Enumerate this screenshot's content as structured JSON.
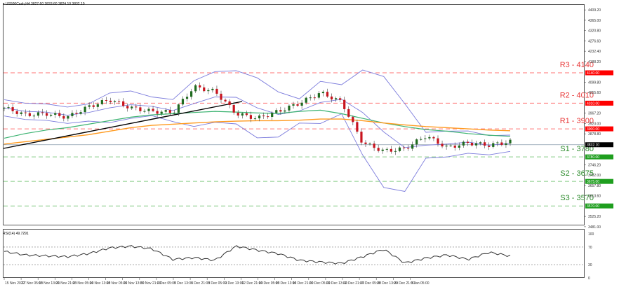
{
  "window": {
    "symbol_header": "US500Cash,H4  3827.60 3833.60 3824.10 3832.10",
    "symbol": "US500Cash",
    "timeframe": "H4",
    "ohlc": {
      "open": "3827.60",
      "high": "3833.60",
      "low": "3824.10",
      "close": "3832.10"
    }
  },
  "rsi_panel": {
    "label": "RSI(14) 49.7291",
    "axis_ticks": [
      "100",
      "70",
      "30",
      "0"
    ],
    "levels": [
      70,
      30
    ]
  },
  "price_axis": {
    "ticks": [
      "4409.20",
      "4365.00",
      "4320.80",
      "4276.60",
      "4232.40",
      "4188.20",
      "4099.80",
      "4055.60",
      "3967.20",
      "3923.00",
      "3878.80",
      "3746.20",
      "3702.00",
      "3657.80",
      "3613.60",
      "3525.20",
      "3481.00"
    ],
    "current_price_label": "3832.10",
    "current_price_color": "#000000"
  },
  "time_axis": {
    "ticks": [
      "15 Nov 2022",
      "17 Nov 05:00",
      "18 Nov 13:00",
      "21 Nov 21:00",
      "23 Nov 05:00",
      "24 Nov 13:00",
      "28 Nov 05:00",
      "29 Nov 13:00",
      "30 Nov 21:00",
      "2 Dec 05:00",
      "5 Dec 13:00",
      "6 Dec 21:00",
      "8 Dec 05:00",
      "9 Dec 13:00",
      "12 Dec 21:00",
      "14 Dec 05:00",
      "15 Dec 13:00",
      "16 Dec 21:00",
      "20 Dec 05:00",
      "21 Dec 13:00",
      "22 Dec 21:00",
      "27 Dec 05:00",
      "28 Dec 13:00",
      "29 Dec 21:00",
      "3 Jan 05:00"
    ]
  },
  "levels": [
    {
      "name": "R3 - 4140",
      "value": 4140,
      "tag": "4140.00",
      "color": "#ff0000",
      "text_color": "#e83a3a"
    },
    {
      "name": "R2 - 4010",
      "value": 4010,
      "tag": "4010.00",
      "color": "#ff0000",
      "text_color": "#e83a3a"
    },
    {
      "name": "R1 - 3900",
      "value": 3900,
      "tag": "3900.00",
      "color": "#ff0000",
      "text_color": "#e83a3a"
    },
    {
      "name": "S1 - 3780",
      "value": 3780,
      "tag": "3780.00",
      "color": "#1e9e1e",
      "text_color": "#2a8a2a"
    },
    {
      "name": "S2 - 3675",
      "value": 3675,
      "tag": "3675.00",
      "color": "#1e9e1e",
      "text_color": "#2a8a2a"
    },
    {
      "name": "S3 - 3570",
      "value": 3570,
      "tag": "3570.00",
      "color": "#1e9e1e",
      "text_color": "#2a8a2a"
    }
  ],
  "colors": {
    "bull_candle": "#1f6b1f",
    "bear_candle": "#c8141e",
    "bollinger": "#7b7bdc",
    "ma_green": "#3cb371",
    "ma_orange": "#ff9a1f",
    "trendline": "#000000",
    "rsi_line": "#333333"
  },
  "chart_data": [
    {
      "type": "line",
      "title": "US500Cash,H4",
      "subtitle": "3827.60 3833.60 3824.10 3832.10",
      "xlabel": "",
      "ylabel": "Price",
      "ylim": [
        3481.0,
        4409.2
      ],
      "x": [
        "15 Nov 2022",
        "17 Nov 05:00",
        "18 Nov 13:00",
        "21 Nov 21:00",
        "23 Nov 05:00",
        "24 Nov 13:00",
        "28 Nov 05:00",
        "29 Nov 13:00",
        "30 Nov 21:00",
        "2 Dec 05:00",
        "5 Dec 13:00",
        "6 Dec 21:00",
        "8 Dec 05:00",
        "9 Dec 13:00",
        "12 Dec 21:00",
        "14 Dec 05:00",
        "15 Dec 13:00",
        "16 Dec 21:00",
        "20 Dec 05:00",
        "21 Dec 13:00",
        "22 Dec 21:00",
        "27 Dec 05:00",
        "28 Dec 13:00",
        "29 Dec 21:00",
        "3 Jan 05:00"
      ],
      "series": [
        {
          "name": "Close (approx.)",
          "values": [
            3990,
            3960,
            3965,
            3950,
            3995,
            4025,
            3990,
            3975,
            3970,
            4080,
            4060,
            3965,
            3945,
            3975,
            4010,
            4055,
            4015,
            3840,
            3805,
            3815,
            3870,
            3820,
            3840,
            3830,
            3845
          ]
        },
        {
          "name": "Moving Average (green)",
          "values": [
            3860,
            3880,
            3895,
            3905,
            3920,
            3935,
            3950,
            3960,
            3965,
            3970,
            3975,
            3972,
            3968,
            3966,
            3975,
            3980,
            3965,
            3945,
            3925,
            3910,
            3897,
            3890,
            3880,
            3873,
            3868
          ]
        },
        {
          "name": "Moving Average (orange)",
          "values": [
            3835,
            3845,
            3855,
            3865,
            3875,
            3890,
            3905,
            3915,
            3920,
            3925,
            3930,
            3933,
            3935,
            3935,
            3937,
            3942,
            3942,
            3935,
            3925,
            3917,
            3910,
            3905,
            3900,
            3895,
            3892
          ]
        }
      ],
      "annotations": [
        "R3 - 4140",
        "R2 - 4010",
        "R1 - 3900",
        "S1 - 3780",
        "S2 - 3675",
        "S3 - 3570",
        "Ascending trendline 15 Nov - 6 Dec"
      ],
      "grid": false,
      "legend": "none"
    },
    {
      "type": "line",
      "title": "RSI(14) 49.7291",
      "xlabel": "",
      "ylabel": "RSI",
      "ylim": [
        0,
        100
      ],
      "x": [
        "15 Nov 2022",
        "17 Nov 05:00",
        "18 Nov 13:00",
        "21 Nov 21:00",
        "23 Nov 05:00",
        "24 Nov 13:00",
        "28 Nov 05:00",
        "29 Nov 13:00",
        "30 Nov 21:00",
        "2 Dec 05:00",
        "5 Dec 13:00",
        "6 Dec 21:00",
        "8 Dec 05:00",
        "9 Dec 13:00",
        "12 Dec 21:00",
        "14 Dec 05:00",
        "15 Dec 13:00",
        "16 Dec 21:00",
        "20 Dec 05:00",
        "21 Dec 13:00",
        "22 Dec 21:00",
        "27 Dec 05:00",
        "28 Dec 13:00",
        "29 Dec 21:00",
        "3 Jan 05:00"
      ],
      "series": [
        {
          "name": "RSI(14)",
          "values": [
            60,
            52,
            50,
            48,
            55,
            68,
            72,
            66,
            42,
            46,
            40,
            72,
            63,
            55,
            40,
            36,
            33,
            48,
            65,
            34,
            45,
            52,
            42,
            58,
            49.7
          ]
        }
      ],
      "annotations": [
        "70 level",
        "30 level"
      ],
      "grid": false
    }
  ]
}
